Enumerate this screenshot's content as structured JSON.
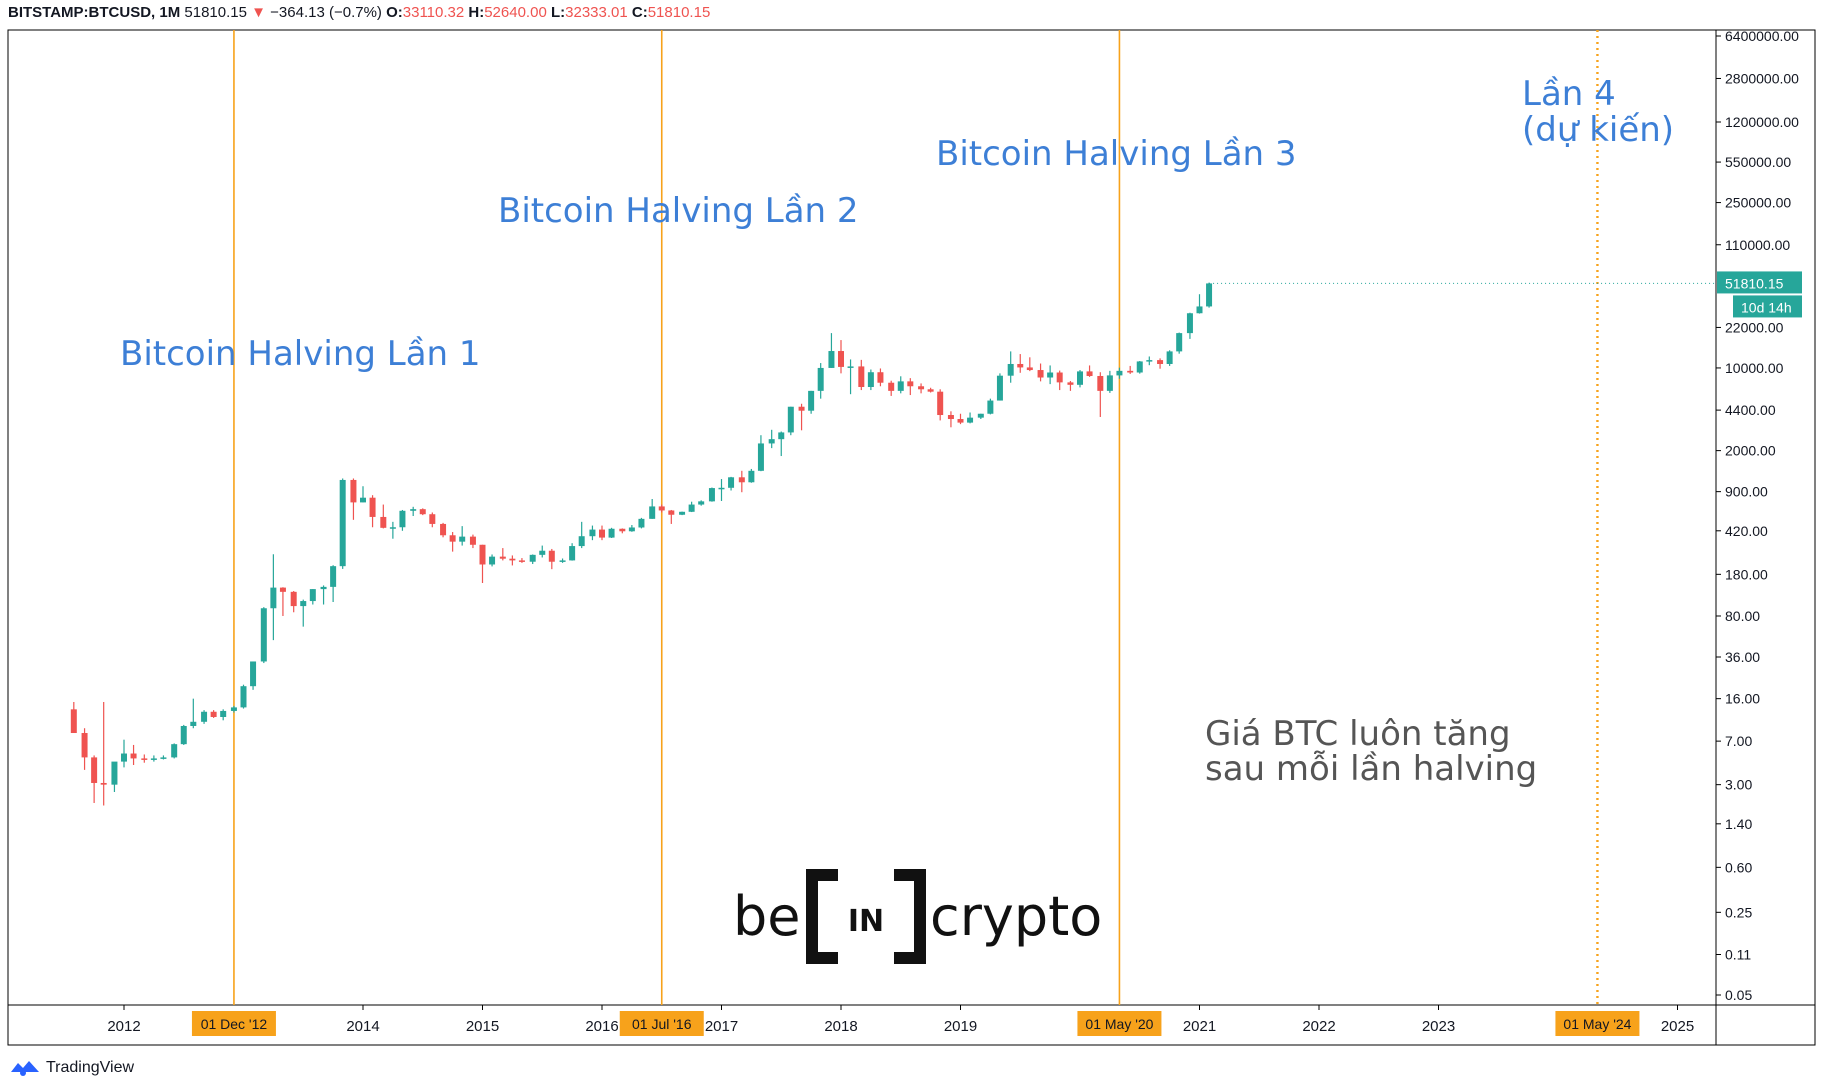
{
  "header": {
    "symbol": "BITSTAMP:BTCUSD, 1M",
    "last": "51810.15",
    "arrow": "▼",
    "change": "−364.13 (−0.7%)",
    "o_label": "O:",
    "o_val": "33110.32",
    "h_label": "H:",
    "h_val": "52640.00",
    "l_label": "L:",
    "l_val": "32333.01",
    "c_label": "C:",
    "c_val": "51810.15"
  },
  "footer": {
    "brand": "TradingView"
  },
  "logo": {
    "text": "be[IN]crypto"
  },
  "colors": {
    "up": "#26a69a",
    "down": "#ef5350",
    "halving": "#f7a21b",
    "annotation": "#3d7fd6",
    "note": "#555555"
  },
  "chart_data": {
    "type": "candlestick",
    "yscale": "log",
    "ylim": [
      0.05,
      6400000
    ],
    "xlim": [
      2011.5,
      2025.7
    ],
    "y_ticks": [
      "6400000.00",
      "2800000.00",
      "1200000.00",
      "550000.00",
      "250000.00",
      "110000.00",
      "22000.00",
      "10000.00",
      "4400.00",
      "2000.00",
      "900.00",
      "420.00",
      "180.00",
      "80.00",
      "36.00",
      "16.00",
      "7.00",
      "3.00",
      "1.40",
      "0.60",
      "0.25",
      "0.11",
      "0.05"
    ],
    "x_ticks": [
      "2012",
      "2014",
      "2015",
      "2016",
      "2017",
      "2018",
      "2019",
      "2021",
      "2022",
      "2023",
      "2025"
    ],
    "x_tick_pos": [
      2012,
      2014,
      2015,
      2016,
      2017,
      2018,
      2019,
      2021,
      2022,
      2023,
      2025
    ],
    "last_price_label": "51810.15",
    "countdown_label": "10d 14h",
    "halvings": [
      {
        "date": "01 Dec '12",
        "x": 2012.92,
        "label": "Bitcoin Halving Lần 1",
        "style": "solid"
      },
      {
        "date": "01 Jul '16",
        "x": 2016.5,
        "label": "Bitcoin Halving Lần 2",
        "style": "solid"
      },
      {
        "date": "01 May '20",
        "x": 2020.33,
        "label": "Bitcoin Halving Lần 3",
        "style": "solid"
      },
      {
        "date": "01 May '24",
        "x": 2024.33,
        "label": "Lần 4",
        "label2": "(dự kiến)",
        "style": "dotted"
      }
    ],
    "note": [
      "Giá BTC luôn tăng",
      "sau mỗi lần halving"
    ],
    "candles": [
      {
        "t": 2011.58,
        "o": 13,
        "h": 15,
        "l": 10,
        "c": 8.2
      },
      {
        "t": 2011.67,
        "o": 8.2,
        "h": 9,
        "l": 4,
        "c": 5.1
      },
      {
        "t": 2011.75,
        "o": 5.1,
        "h": 5.3,
        "l": 2.1,
        "c": 3.1
      },
      {
        "t": 2011.83,
        "o": 3.1,
        "h": 15,
        "l": 2,
        "c": 3.0
      },
      {
        "t": 2011.92,
        "o": 3.0,
        "h": 4.5,
        "l": 2.6,
        "c": 4.7
      },
      {
        "t": 2012.0,
        "o": 4.7,
        "h": 7.2,
        "l": 4.2,
        "c": 5.5
      },
      {
        "t": 2012.08,
        "o": 5.5,
        "h": 6.5,
        "l": 4.4,
        "c": 5.0
      },
      {
        "t": 2012.17,
        "o": 5.0,
        "h": 5.4,
        "l": 4.6,
        "c": 4.9
      },
      {
        "t": 2012.25,
        "o": 4.9,
        "h": 5.3,
        "l": 4.7,
        "c": 5.0
      },
      {
        "t": 2012.33,
        "o": 5.0,
        "h": 5.3,
        "l": 4.9,
        "c": 5.1
      },
      {
        "t": 2012.42,
        "o": 5.1,
        "h": 6.7,
        "l": 5.0,
        "c": 6.6
      },
      {
        "t": 2012.5,
        "o": 6.6,
        "h": 9.6,
        "l": 6.5,
        "c": 9.4
      },
      {
        "t": 2012.58,
        "o": 9.4,
        "h": 16,
        "l": 9,
        "c": 10.2
      },
      {
        "t": 2012.67,
        "o": 10.2,
        "h": 12.8,
        "l": 9.8,
        "c": 12.4
      },
      {
        "t": 2012.75,
        "o": 12.4,
        "h": 12.8,
        "l": 11,
        "c": 11.2
      },
      {
        "t": 2012.83,
        "o": 11.2,
        "h": 13,
        "l": 10.5,
        "c": 12.6
      },
      {
        "t": 2012.92,
        "o": 12.6,
        "h": 13.9,
        "l": 12.2,
        "c": 13.5
      },
      {
        "t": 2013.0,
        "o": 13.5,
        "h": 21,
        "l": 13.2,
        "c": 20.4
      },
      {
        "t": 2013.08,
        "o": 20.4,
        "h": 33,
        "l": 19,
        "c": 33
      },
      {
        "t": 2013.17,
        "o": 33,
        "h": 95,
        "l": 32,
        "c": 93
      },
      {
        "t": 2013.25,
        "o": 93,
        "h": 266,
        "l": 50,
        "c": 139
      },
      {
        "t": 2013.33,
        "o": 139,
        "h": 140,
        "l": 80,
        "c": 128
      },
      {
        "t": 2013.42,
        "o": 128,
        "h": 130,
        "l": 86,
        "c": 97
      },
      {
        "t": 2013.5,
        "o": 97,
        "h": 110,
        "l": 65,
        "c": 107
      },
      {
        "t": 2013.58,
        "o": 107,
        "h": 135,
        "l": 100,
        "c": 135
      },
      {
        "t": 2013.67,
        "o": 135,
        "h": 145,
        "l": 100,
        "c": 141
      },
      {
        "t": 2013.75,
        "o": 141,
        "h": 215,
        "l": 105,
        "c": 211
      },
      {
        "t": 2013.83,
        "o": 211,
        "h": 1163,
        "l": 200,
        "c": 1130
      },
      {
        "t": 2013.92,
        "o": 1130,
        "h": 1163,
        "l": 520,
        "c": 730
      },
      {
        "t": 2014.0,
        "o": 730,
        "h": 1000,
        "l": 730,
        "c": 800
      },
      {
        "t": 2014.08,
        "o": 800,
        "h": 840,
        "l": 450,
        "c": 550
      },
      {
        "t": 2014.17,
        "o": 550,
        "h": 700,
        "l": 440,
        "c": 445
      },
      {
        "t": 2014.25,
        "o": 445,
        "h": 500,
        "l": 360,
        "c": 450
      },
      {
        "t": 2014.33,
        "o": 450,
        "h": 630,
        "l": 420,
        "c": 620
      },
      {
        "t": 2014.42,
        "o": 620,
        "h": 670,
        "l": 560,
        "c": 640
      },
      {
        "t": 2014.5,
        "o": 640,
        "h": 650,
        "l": 570,
        "c": 580
      },
      {
        "t": 2014.58,
        "o": 580,
        "h": 600,
        "l": 450,
        "c": 480
      },
      {
        "t": 2014.67,
        "o": 480,
        "h": 490,
        "l": 370,
        "c": 385
      },
      {
        "t": 2014.75,
        "o": 385,
        "h": 410,
        "l": 280,
        "c": 340
      },
      {
        "t": 2014.83,
        "o": 340,
        "h": 460,
        "l": 315,
        "c": 375
      },
      {
        "t": 2014.92,
        "o": 375,
        "h": 390,
        "l": 300,
        "c": 320
      },
      {
        "t": 2015.0,
        "o": 320,
        "h": 320,
        "l": 152,
        "c": 218
      },
      {
        "t": 2015.08,
        "o": 218,
        "h": 265,
        "l": 210,
        "c": 254
      },
      {
        "t": 2015.17,
        "o": 254,
        "h": 300,
        "l": 236,
        "c": 244
      },
      {
        "t": 2015.25,
        "o": 244,
        "h": 260,
        "l": 214,
        "c": 236
      },
      {
        "t": 2015.33,
        "o": 236,
        "h": 247,
        "l": 225,
        "c": 230
      },
      {
        "t": 2015.42,
        "o": 230,
        "h": 265,
        "l": 220,
        "c": 263
      },
      {
        "t": 2015.5,
        "o": 263,
        "h": 315,
        "l": 250,
        "c": 285
      },
      {
        "t": 2015.58,
        "o": 285,
        "h": 295,
        "l": 199,
        "c": 230
      },
      {
        "t": 2015.67,
        "o": 230,
        "h": 245,
        "l": 225,
        "c": 236
      },
      {
        "t": 2015.75,
        "o": 236,
        "h": 330,
        "l": 235,
        "c": 312
      },
      {
        "t": 2015.83,
        "o": 312,
        "h": 500,
        "l": 300,
        "c": 378
      },
      {
        "t": 2015.92,
        "o": 378,
        "h": 465,
        "l": 350,
        "c": 430
      },
      {
        "t": 2016.0,
        "o": 430,
        "h": 465,
        "l": 350,
        "c": 368
      },
      {
        "t": 2016.08,
        "o": 368,
        "h": 445,
        "l": 365,
        "c": 437
      },
      {
        "t": 2016.17,
        "o": 437,
        "h": 440,
        "l": 400,
        "c": 416
      },
      {
        "t": 2016.25,
        "o": 416,
        "h": 470,
        "l": 412,
        "c": 448
      },
      {
        "t": 2016.33,
        "o": 448,
        "h": 540,
        "l": 440,
        "c": 530
      },
      {
        "t": 2016.42,
        "o": 530,
        "h": 780,
        "l": 530,
        "c": 675
      },
      {
        "t": 2016.5,
        "o": 675,
        "h": 700,
        "l": 600,
        "c": 624
      },
      {
        "t": 2016.58,
        "o": 624,
        "h": 630,
        "l": 480,
        "c": 574
      },
      {
        "t": 2016.67,
        "o": 574,
        "h": 610,
        "l": 570,
        "c": 608
      },
      {
        "t": 2016.75,
        "o": 608,
        "h": 740,
        "l": 605,
        "c": 700
      },
      {
        "t": 2016.83,
        "o": 700,
        "h": 760,
        "l": 685,
        "c": 745
      },
      {
        "t": 2016.92,
        "o": 745,
        "h": 975,
        "l": 740,
        "c": 965
      },
      {
        "t": 2017.0,
        "o": 965,
        "h": 1150,
        "l": 750,
        "c": 970
      },
      {
        "t": 2017.08,
        "o": 970,
        "h": 1200,
        "l": 920,
        "c": 1190
      },
      {
        "t": 2017.17,
        "o": 1190,
        "h": 1350,
        "l": 890,
        "c": 1080
      },
      {
        "t": 2017.25,
        "o": 1080,
        "h": 1400,
        "l": 1070,
        "c": 1350
      },
      {
        "t": 2017.33,
        "o": 1350,
        "h": 2700,
        "l": 1340,
        "c": 2300
      },
      {
        "t": 2017.42,
        "o": 2300,
        "h": 3000,
        "l": 2100,
        "c": 2500
      },
      {
        "t": 2017.5,
        "o": 2500,
        "h": 2900,
        "l": 1800,
        "c": 2850
      },
      {
        "t": 2017.58,
        "o": 2850,
        "h": 4700,
        "l": 2700,
        "c": 4700
      },
      {
        "t": 2017.67,
        "o": 4700,
        "h": 4980,
        "l": 2970,
        "c": 4350
      },
      {
        "t": 2017.75,
        "o": 4350,
        "h": 6400,
        "l": 4100,
        "c": 6400
      },
      {
        "t": 2017.83,
        "o": 6400,
        "h": 11000,
        "l": 5500,
        "c": 10000
      },
      {
        "t": 2017.92,
        "o": 10000,
        "h": 19700,
        "l": 10000,
        "c": 13900
      },
      {
        "t": 2018.0,
        "o": 13900,
        "h": 17200,
        "l": 9000,
        "c": 10200
      },
      {
        "t": 2018.08,
        "o": 10200,
        "h": 11800,
        "l": 6000,
        "c": 10300
      },
      {
        "t": 2018.17,
        "o": 10300,
        "h": 11700,
        "l": 6500,
        "c": 6900
      },
      {
        "t": 2018.25,
        "o": 6900,
        "h": 9700,
        "l": 6500,
        "c": 9200
      },
      {
        "t": 2018.33,
        "o": 9200,
        "h": 9900,
        "l": 7000,
        "c": 7500
      },
      {
        "t": 2018.42,
        "o": 7500,
        "h": 7800,
        "l": 5800,
        "c": 6400
      },
      {
        "t": 2018.5,
        "o": 6400,
        "h": 8500,
        "l": 6100,
        "c": 7700
      },
      {
        "t": 2018.58,
        "o": 7700,
        "h": 8200,
        "l": 5900,
        "c": 7000
      },
      {
        "t": 2018.67,
        "o": 7000,
        "h": 7400,
        "l": 6100,
        "c": 6600
      },
      {
        "t": 2018.75,
        "o": 6600,
        "h": 6800,
        "l": 6200,
        "c": 6300
      },
      {
        "t": 2018.83,
        "o": 6300,
        "h": 6600,
        "l": 3600,
        "c": 4000
      },
      {
        "t": 2018.92,
        "o": 4000,
        "h": 4300,
        "l": 3150,
        "c": 3700
      },
      {
        "t": 2019.0,
        "o": 3700,
        "h": 4100,
        "l": 3350,
        "c": 3450
      },
      {
        "t": 2019.08,
        "o": 3450,
        "h": 4200,
        "l": 3400,
        "c": 3800
      },
      {
        "t": 2019.17,
        "o": 3800,
        "h": 4100,
        "l": 3700,
        "c": 4100
      },
      {
        "t": 2019.25,
        "o": 4100,
        "h": 5500,
        "l": 4050,
        "c": 5300
      },
      {
        "t": 2019.33,
        "o": 5300,
        "h": 9000,
        "l": 5300,
        "c": 8600
      },
      {
        "t": 2019.42,
        "o": 8600,
        "h": 13800,
        "l": 7500,
        "c": 10800
      },
      {
        "t": 2019.5,
        "o": 10800,
        "h": 13100,
        "l": 9100,
        "c": 10100
      },
      {
        "t": 2019.58,
        "o": 10100,
        "h": 12300,
        "l": 9400,
        "c": 9600
      },
      {
        "t": 2019.67,
        "o": 9600,
        "h": 10900,
        "l": 7700,
        "c": 8300
      },
      {
        "t": 2019.75,
        "o": 8300,
        "h": 10500,
        "l": 7300,
        "c": 9150
      },
      {
        "t": 2019.83,
        "o": 9150,
        "h": 9500,
        "l": 6500,
        "c": 7550
      },
      {
        "t": 2019.92,
        "o": 7550,
        "h": 7750,
        "l": 6400,
        "c": 7200
      },
      {
        "t": 2020.0,
        "o": 7200,
        "h": 9600,
        "l": 6850,
        "c": 9350
      },
      {
        "t": 2020.08,
        "o": 9350,
        "h": 10500,
        "l": 8400,
        "c": 8550
      },
      {
        "t": 2020.17,
        "o": 8550,
        "h": 9200,
        "l": 3850,
        "c": 6400
      },
      {
        "t": 2020.25,
        "o": 6400,
        "h": 9450,
        "l": 6150,
        "c": 8650
      },
      {
        "t": 2020.33,
        "o": 8650,
        "h": 10050,
        "l": 8100,
        "c": 9450
      },
      {
        "t": 2020.42,
        "o": 9450,
        "h": 10400,
        "l": 8900,
        "c": 9150
      },
      {
        "t": 2020.5,
        "o": 9150,
        "h": 11450,
        "l": 8950,
        "c": 11350
      },
      {
        "t": 2020.58,
        "o": 11350,
        "h": 12500,
        "l": 10550,
        "c": 11650
      },
      {
        "t": 2020.67,
        "o": 11650,
        "h": 12050,
        "l": 9850,
        "c": 10800
      },
      {
        "t": 2020.75,
        "o": 10800,
        "h": 14100,
        "l": 10400,
        "c": 13800
      },
      {
        "t": 2020.83,
        "o": 13800,
        "h": 19900,
        "l": 13200,
        "c": 19700
      },
      {
        "t": 2020.92,
        "o": 19700,
        "h": 29300,
        "l": 17600,
        "c": 29000
      },
      {
        "t": 2021.0,
        "o": 29000,
        "h": 42000,
        "l": 28800,
        "c": 33100
      },
      {
        "t": 2021.08,
        "o": 33110.32,
        "h": 52640,
        "l": 32333.01,
        "c": 51810.15
      }
    ]
  }
}
